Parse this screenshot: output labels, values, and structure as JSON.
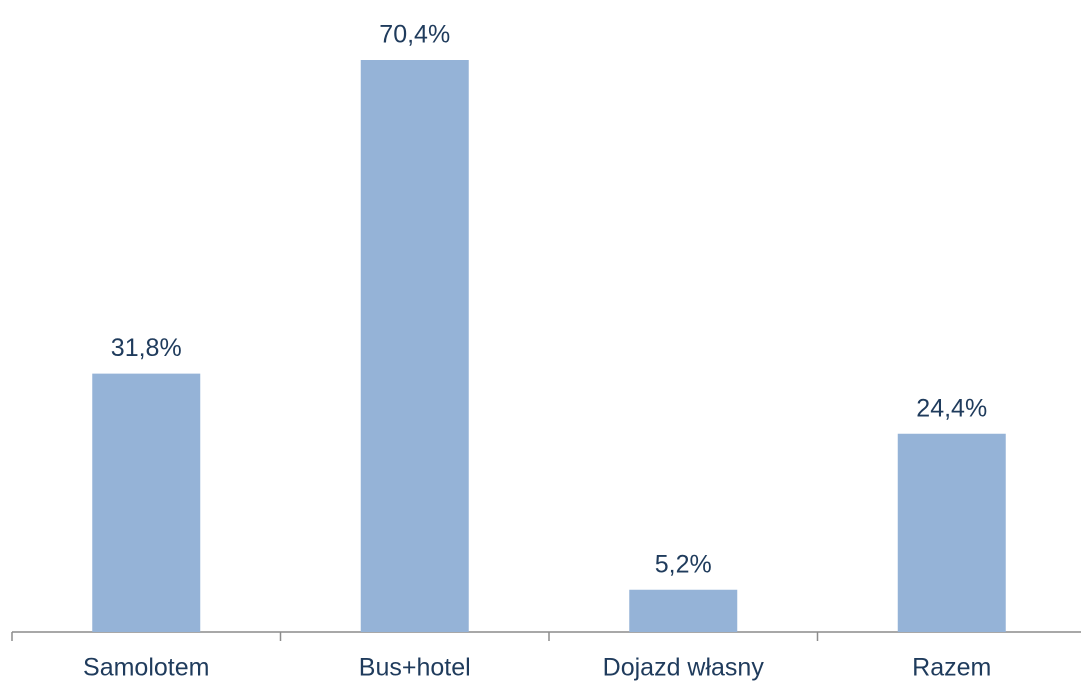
{
  "chart_data": {
    "type": "bar",
    "categories": [
      "Samolotem",
      "Bus+hotel",
      "Dojazd własny",
      "Razem"
    ],
    "values": [
      31.8,
      70.4,
      5.2,
      24.4
    ],
    "value_labels": [
      "31,8%",
      "70,4%",
      "5,2%",
      "24,4%"
    ],
    "color": "#95b3d7"
  }
}
